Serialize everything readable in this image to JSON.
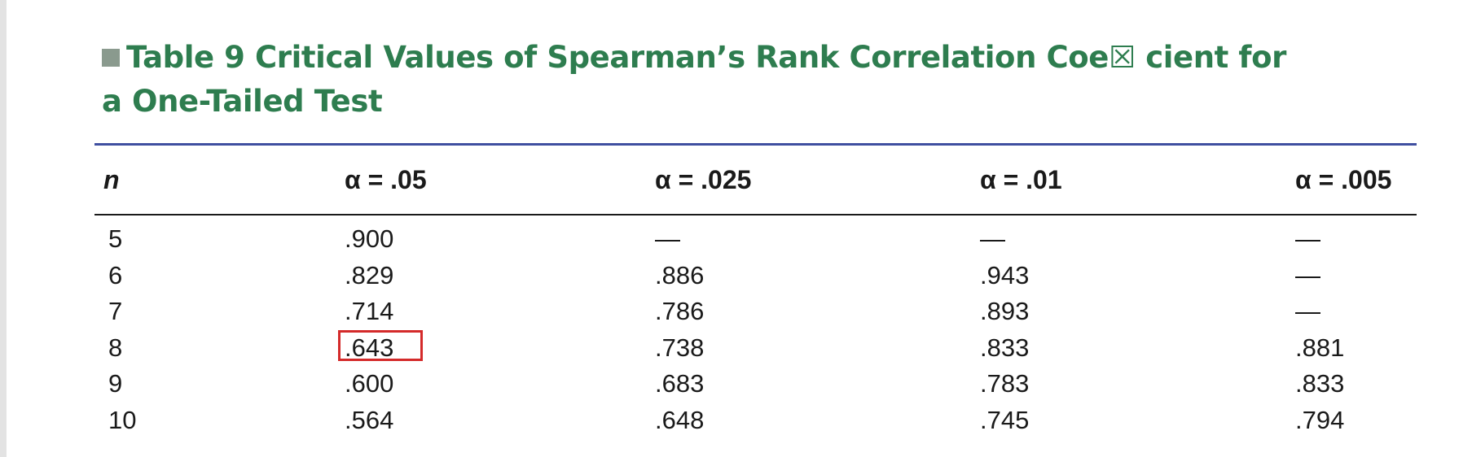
{
  "title": {
    "line1": "Table 9  Critical Values of Spearman’s Rank Correlation Coe☒ cient for",
    "line2": "a One-Tailed Test"
  },
  "columns": [
    "n",
    "α = .05",
    "α = .025",
    "α = .01",
    "α = .005"
  ],
  "rows": [
    [
      "5",
      ".900",
      "—",
      "—",
      "—"
    ],
    [
      "6",
      ".829",
      ".886",
      ".943",
      "—"
    ],
    [
      "7",
      ".714",
      ".786",
      ".893",
      "—"
    ],
    [
      "8",
      ".643",
      ".738",
      ".833",
      ".881"
    ],
    [
      "9",
      ".600",
      ".683",
      ".783",
      ".833"
    ],
    [
      "10",
      ".564",
      ".648",
      ".745",
      ".794"
    ]
  ],
  "highlight": {
    "row": 3,
    "column": 1,
    "color": "#d42a2a"
  },
  "colors": {
    "title": "#2e7d4f",
    "rule_top": "#3f4fa0",
    "text": "#1a1a1a"
  }
}
